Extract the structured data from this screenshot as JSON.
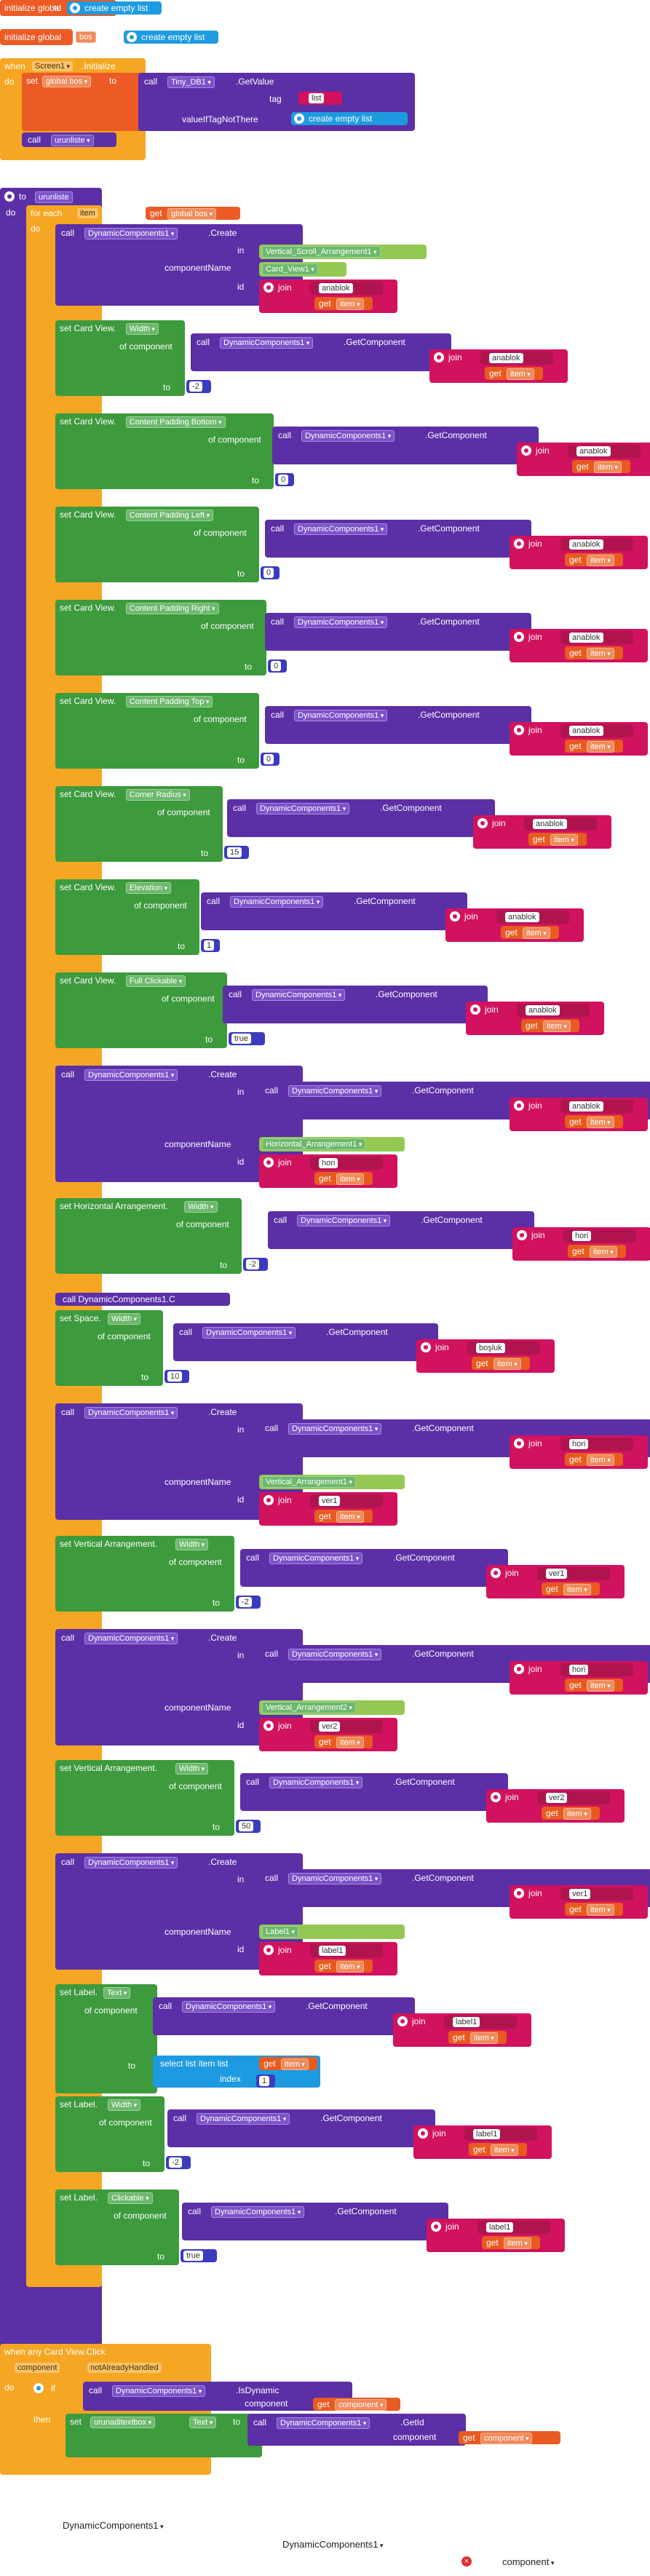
{
  "colors": {
    "global": "#ec5b25",
    "event": "#f5a623",
    "component": "#5b2fa6",
    "setter": "#3d9a3d",
    "text": "#d1125e",
    "number": "#3b3bbf",
    "list": "#1e9be0"
  },
  "init1": {
    "label": "initialize global",
    "name": "urunliste",
    "to": "to",
    "value": "create empty list"
  },
  "init2": {
    "label": "initialize global",
    "name": "bos",
    "to": "to",
    "value": "create empty list"
  },
  "screen": {
    "when": "when",
    "comp": "Screen1",
    "event": ".Initialize",
    "do": "do",
    "set": "set",
    "var": "global bos",
    "to": "to",
    "call": "call",
    "db": "Tiny_DB1",
    "method": ".GetValue",
    "tag": "tag",
    "tagval": "list",
    "notthere": "valueIfTagNotThere",
    "empty": "create empty list",
    "call2": "call",
    "proc": "urunliste"
  },
  "proc": {
    "to": "to",
    "name": "urunliste",
    "do": "do",
    "foreach": "for each",
    "item": "item",
    "inlist": "in list",
    "get": "get",
    "var": "global bos"
  },
  "kw": {
    "call": "call",
    "dc": "DynamicComponents1",
    "create": ".Create",
    "getcomp": ".GetComponent",
    "in": "in",
    "cname": "componentName",
    "id": "id",
    "ofc": "of component",
    "to": "to",
    "join": "join",
    "get": "get",
    "item": "item"
  },
  "s1": {
    "in": "Vertical_Scroll_Arrangement1",
    "cname": "Card_View1",
    "text": "anablok"
  },
  "s2": {
    "target": "set Card View.",
    "prop": "Width",
    "text": "anablok",
    "num": "-2"
  },
  "s3": {
    "target": "set Card View.",
    "prop": "Content Padding Bottom",
    "text": "anablok",
    "num": "0"
  },
  "s4": {
    "target": "set Card View.",
    "prop": "Content Padding Left",
    "text": "anablok",
    "num": "0"
  },
  "s5": {
    "target": "set Card View.",
    "prop": "Content Padding Right",
    "text": "anablok",
    "num": "0"
  },
  "s6": {
    "target": "set Card View.",
    "prop": "Content Padding Top",
    "text": "anablok",
    "num": "0"
  },
  "s7": {
    "target": "set Card View.",
    "prop": "Corner Radius",
    "text": "anablok",
    "num": "15"
  },
  "s8": {
    "target": "set Card View.",
    "prop": "Elevation",
    "text": "anablok",
    "num": "1"
  },
  "s9": {
    "target": "set Card View.",
    "prop": "Full Clickable",
    "text": "anablok",
    "num": "true"
  },
  "s10": {
    "intext": "anablok",
    "cname": "Horizontal_Arrangement1",
    "text": "hori"
  },
  "s11": {
    "target": "set Horizontal Arrangement.",
    "prop": "Width",
    "text": "hori",
    "num": "-2"
  },
  "s12": {
    "label": "call DynamicComponents1.C"
  },
  "s13": {
    "target": "set Space.",
    "prop": "Width",
    "text": "boşluk",
    "num": "10"
  },
  "s14": {
    "intext": "hori",
    "cname": "Vertical_Arrangement1",
    "text": "ver1"
  },
  "s15": {
    "target": "set Vertical Arrangement.",
    "prop": "Width",
    "text": "ver1",
    "num": "-2"
  },
  "s16": {
    "intext": "hori",
    "cname": "Vertical_Arrangement2",
    "text": "ver2"
  },
  "s17": {
    "target": "set Vertical Arrangement.",
    "prop": "Width",
    "text": "ver2",
    "num": "50"
  },
  "s18": {
    "intext": "ver1",
    "cname": "Label1",
    "text": "label1"
  },
  "s19": {
    "target": "set Label.",
    "prop": "Text",
    "text": "label1",
    "select": "select list item list",
    "index": "index",
    "num": "1"
  },
  "s20": {
    "target": "set Label.",
    "prop": "Width",
    "text": "label1",
    "num": "-2"
  },
  "s21": {
    "target": "set Label.",
    "prop": "Clickable",
    "text": "label1",
    "num": "true"
  },
  "click": {
    "when": "when any Card View.Click",
    "component": "component",
    "nah": "notAlreadyHandled",
    "do": "do",
    "if": "if",
    "then": "then",
    "call": "call",
    "dc": "DynamicComponents1",
    "isdyn": ".IsDynamic",
    "comp": "component",
    "get": "get",
    "getcomp": "component",
    "set": "set",
    "var": "urunaditextbox",
    "prop": "Text",
    "to": "to",
    "getid": ".GetId"
  },
  "loose": {
    "a": "DynamicComponents1",
    "b": "DynamicComponents1",
    "c": "component"
  }
}
